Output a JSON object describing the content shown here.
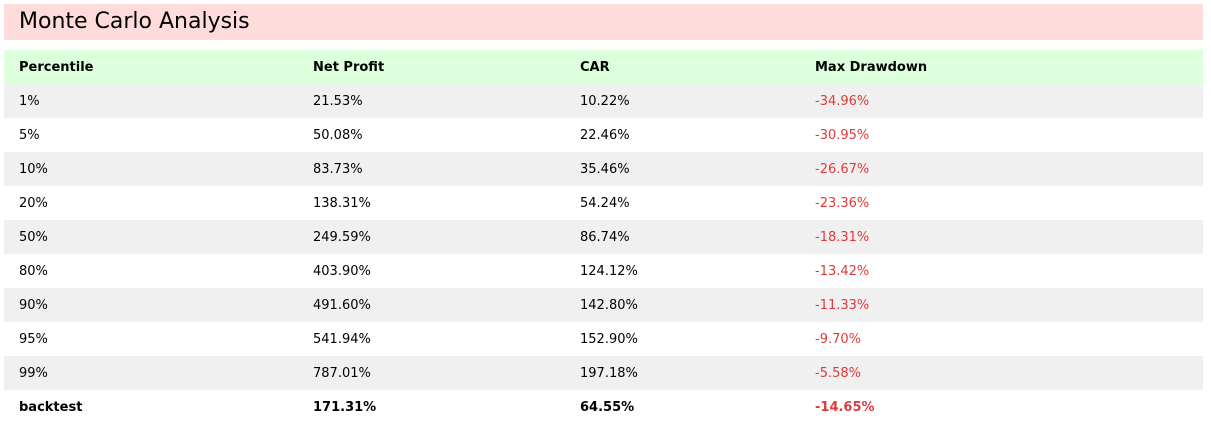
{
  "title": "Monte Carlo Analysis",
  "colors": {
    "title_bg": "#ffdcdc",
    "header_bg": "#dcffdc",
    "row_alt_bg": "#f0f0f0",
    "negative": "#e03a3a"
  },
  "table": {
    "headers": [
      "Percentile",
      "Net Profit",
      "CAR",
      "Max Drawdown"
    ],
    "rows": [
      [
        "1%",
        "21.53%",
        "10.22%",
        "-34.96%"
      ],
      [
        "5%",
        "50.08%",
        "22.46%",
        "-30.95%"
      ],
      [
        "10%",
        "83.73%",
        "35.46%",
        "-26.67%"
      ],
      [
        "20%",
        "138.31%",
        "54.24%",
        "-23.36%"
      ],
      [
        "50%",
        "249.59%",
        "86.74%",
        "-18.31%"
      ],
      [
        "80%",
        "403.90%",
        "124.12%",
        "-13.42%"
      ],
      [
        "90%",
        "491.60%",
        "142.80%",
        "-11.33%"
      ],
      [
        "95%",
        "541.94%",
        "152.90%",
        "-9.70%"
      ],
      [
        "99%",
        "787.01%",
        "197.18%",
        "-5.58%"
      ],
      [
        "backtest",
        "171.31%",
        "64.55%",
        "-14.65%"
      ]
    ]
  }
}
